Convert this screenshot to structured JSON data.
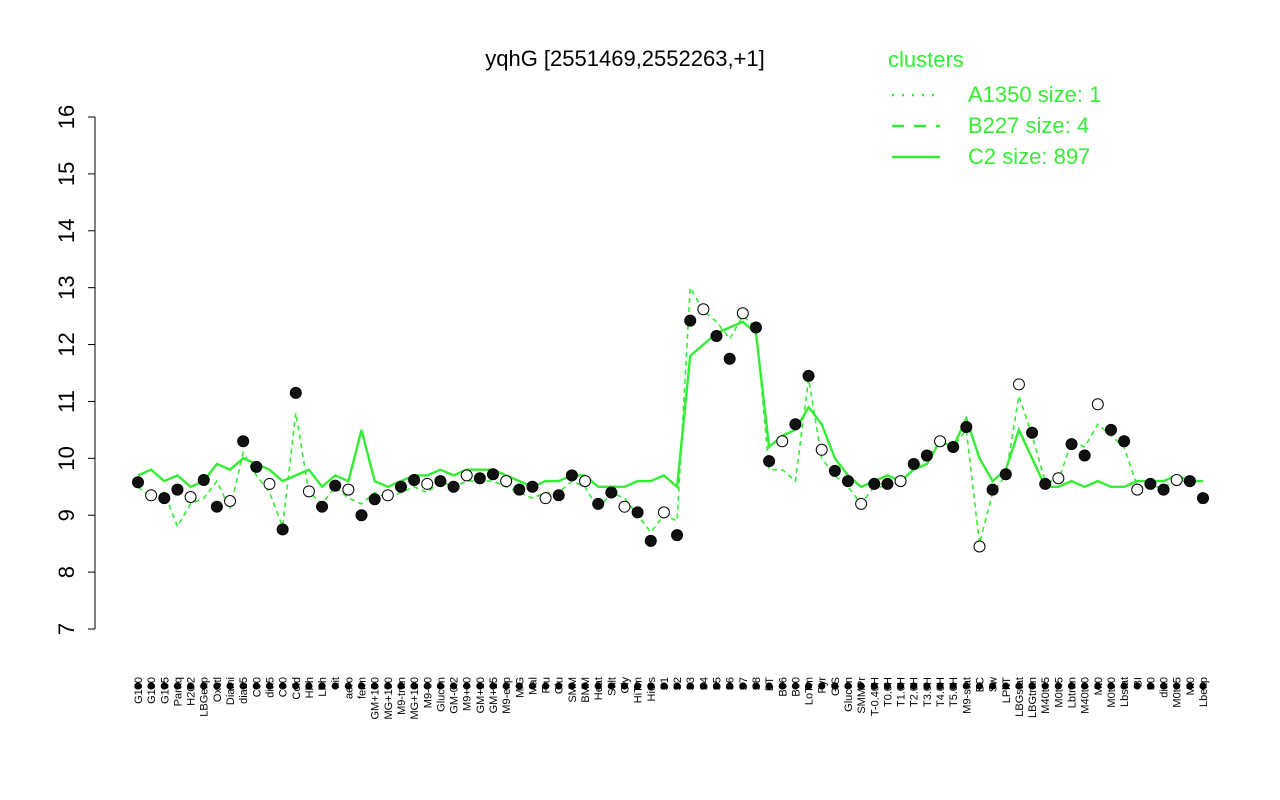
{
  "chart_data": {
    "type": "line",
    "title": "yqhG [2551469,2552263,+1]",
    "ylim": [
      7,
      16
    ],
    "yticks": [
      7,
      8,
      9,
      10,
      11,
      12,
      13,
      14,
      15,
      16
    ],
    "legend": {
      "title": "clusters",
      "position": "top-right",
      "entries": [
        {
          "label": "A1350 size: 1",
          "style": "dotted"
        },
        {
          "label": "B227 size: 4",
          "style": "dashed"
        },
        {
          "label": "C2 size: 897",
          "style": "solid"
        }
      ]
    },
    "x_tick_labels": [
      "G150",
      "G180",
      "G135",
      "Paraq",
      "H2O2",
      "LBGexp",
      "Oxctl",
      "Diami",
      "dia15",
      "C90",
      "dia5",
      "C30",
      "Cold",
      "HPh",
      "LPh",
      "nit",
      "aero",
      "ferm",
      "GM+150",
      "MG+150",
      "M9-tran",
      "MG+120",
      "M9-60",
      "Glucon",
      "GM-0.2",
      "M9+60",
      "GM+10",
      "GM+15",
      "M9-exp",
      "M/G",
      "Mal",
      "Fru",
      "Glu",
      "SMM",
      "BMM",
      "Heat",
      "Salt",
      "Gly",
      "HiTm",
      "HiOs",
      "S1",
      "S2",
      "S3",
      "S4",
      "S5",
      "S6",
      "S7",
      "S8",
      "BT",
      "B36",
      "B60",
      "LoTm",
      "Pyr",
      "G/S",
      "Glucon",
      "SMMPr",
      "T-0.40H",
      "T0.0H",
      "T1.0H",
      "T2.0H",
      "T3.0H",
      "T4.0H",
      "T5.0H",
      "M9-stat",
      "BC",
      "Sw",
      "LPhT",
      "LBGstat",
      "LBGtran",
      "M40t45",
      "M0t45",
      "Lbtran",
      "M40t90",
      "Mt0",
      "M0t90",
      "Lbstat",
      "BI",
      "S0",
      "dia0",
      "M0t45",
      "Mt0",
      "Lbexp"
    ],
    "series": [
      {
        "style": "solid",
        "values": [
          9.7,
          9.8,
          9.6,
          9.7,
          9.5,
          9.6,
          9.9,
          9.8,
          10.0,
          9.9,
          9.8,
          9.6,
          9.7,
          9.8,
          9.5,
          9.7,
          9.6,
          10.5,
          9.6,
          9.5,
          9.6,
          9.7,
          9.7,
          9.8,
          9.7,
          9.8,
          9.8,
          9.8,
          9.7,
          9.6,
          9.5,
          9.6,
          9.6,
          9.7,
          9.7,
          9.5,
          9.5,
          9.5,
          9.6,
          9.6,
          9.7,
          9.5,
          11.8,
          12.0,
          12.2,
          12.3,
          12.4,
          12.2,
          10.2,
          10.4,
          10.5,
          10.9,
          10.6,
          10.0,
          9.7,
          9.5,
          9.6,
          9.7,
          9.6,
          9.8,
          9.9,
          10.3,
          10.2,
          10.7,
          10.0,
          9.6,
          9.8,
          10.5,
          10.0,
          9.5,
          9.5,
          9.6,
          9.5,
          9.6,
          9.5,
          9.5,
          9.6,
          9.6,
          9.6,
          9.7,
          9.6,
          9.6
        ]
      },
      {
        "style": "dashed",
        "values": [
          9.5,
          9.3,
          9.4,
          8.8,
          9.2,
          9.3,
          9.6,
          9.1,
          10.1,
          9.7,
          9.4,
          8.8,
          10.8,
          9.4,
          9.2,
          9.5,
          9.3,
          9.2,
          9.4,
          9.3,
          9.4,
          9.5,
          9.4,
          9.6,
          9.5,
          9.6,
          9.6,
          9.6,
          9.5,
          9.4,
          9.3,
          9.4,
          9.4,
          9.6,
          9.5,
          9.1,
          9.4,
          9.3,
          9.0,
          8.7,
          9.0,
          8.9,
          13.0,
          12.6,
          12.4,
          12.1,
          12.5,
          12.3,
          9.8,
          9.8,
          9.6,
          11.4,
          10.0,
          9.7,
          9.5,
          9.2,
          9.5,
          9.5,
          9.6,
          9.8,
          10.0,
          10.3,
          10.2,
          10.5,
          8.5,
          9.4,
          9.7,
          11.1,
          10.4,
          9.6,
          9.6,
          10.3,
          10.2,
          10.6,
          10.4,
          10.2,
          9.5,
          9.5,
          9.5,
          9.6,
          9.6,
          9.6
        ]
      }
    ],
    "points": [
      9.58,
      9.35,
      9.3,
      9.45,
      9.32,
      9.62,
      9.15,
      9.25,
      10.3,
      9.85,
      9.55,
      8.75,
      11.15,
      9.42,
      9.15,
      9.52,
      9.45,
      9.0,
      9.28,
      9.35,
      9.5,
      9.62,
      9.55,
      9.6,
      9.5,
      9.7,
      9.65,
      9.72,
      9.6,
      9.45,
      9.5,
      9.3,
      9.35,
      9.7,
      9.6,
      9.2,
      9.4,
      9.15,
      9.05,
      8.55,
      9.05,
      8.65,
      12.42,
      12.62,
      12.15,
      11.75,
      12.55,
      12.3,
      9.95,
      10.3,
      10.6,
      11.45,
      10.15,
      9.78,
      9.6,
      9.2,
      9.55,
      9.55,
      9.6,
      9.9,
      10.05,
      10.3,
      10.2,
      10.55,
      8.45,
      9.45,
      9.72,
      11.3,
      10.45,
      9.55,
      9.65,
      10.25,
      10.05,
      10.95,
      10.5,
      10.3,
      9.45,
      9.55,
      9.45,
      9.62,
      9.6,
      9.3
    ],
    "colors": {
      "line": "#33ee33",
      "points": "#000000",
      "legend": "#33ee33"
    }
  }
}
